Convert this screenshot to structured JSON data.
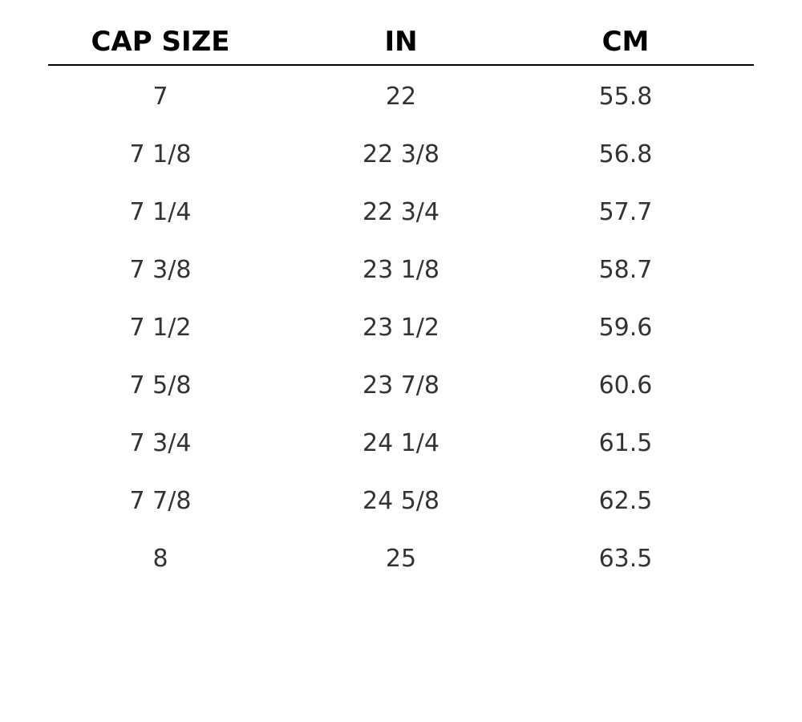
{
  "table": {
    "header": [
      "CAP SIZE",
      "IN",
      "CM"
    ],
    "rows": [
      [
        "7",
        "22",
        "55.8"
      ],
      [
        "7 1/8",
        "22 3/8",
        "56.8"
      ],
      [
        "7 1/4",
        "22 3/4",
        "57.7"
      ],
      [
        "7 3/8",
        "23 1/8",
        "58.7"
      ],
      [
        "7 1/2",
        "23 1/2",
        "59.6"
      ],
      [
        "7 5/8",
        "23 7/8",
        "60.6"
      ],
      [
        "7 3/4",
        "24 1/4",
        "61.5"
      ],
      [
        "7 7/8",
        "24 5/8",
        "62.5"
      ],
      [
        "8",
        "25",
        "63.5"
      ]
    ]
  }
}
